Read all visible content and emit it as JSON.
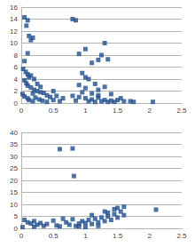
{
  "chart_data": [
    {
      "type": "scatter",
      "color": "#1f4e8c",
      "marker": "square",
      "grid": true,
      "xlim": [
        0,
        2.5
      ],
      "xticks": [
        0,
        0.5,
        1,
        1.5,
        2,
        2.5
      ],
      "ylim": [
        0,
        16
      ],
      "yticks": [
        0,
        2,
        4,
        6,
        8,
        10,
        12,
        14,
        16
      ],
      "x": [
        0.05,
        0.1,
        0.08,
        0.12,
        0.15,
        0.18,
        0.1,
        0.05,
        0.03,
        0.07,
        0.1,
        0.12,
        0.15,
        0.2,
        0.05,
        0.08,
        0.1,
        0.15,
        0.2,
        0.25,
        0.3,
        0.35,
        0.4,
        0.02,
        0.05,
        0.1,
        0.12,
        0.18,
        0.22,
        0.28,
        0.33,
        0.4,
        0.5,
        0.45,
        0.55,
        0.6,
        0.25,
        0.3,
        0.18,
        0.5,
        0.65,
        0.8,
        0.85,
        0.9,
        1.0,
        1.2,
        1.25,
        1.3,
        1.35,
        1.1,
        0.95,
        1.0,
        1.05,
        0.9,
        1.15,
        1.3,
        1.0,
        1.2,
        0.95,
        1.1,
        1.4,
        0.8,
        0.9,
        1.0,
        1.1,
        1.2,
        1.3,
        1.4,
        1.5,
        1.6,
        1.7,
        1.75,
        1.05,
        1.15,
        1.25,
        1.35,
        1.45,
        0.85,
        2.05,
        1.55,
        1.2
      ],
      "values": [
        14.3,
        13.8,
        12.9,
        11.2,
        10.5,
        10.9,
        8.3,
        7.0,
        5.7,
        5.2,
        4.8,
        4.3,
        4.6,
        4.0,
        3.8,
        3.3,
        2.9,
        2.6,
        2.2,
        2.0,
        1.8,
        1.7,
        1.3,
        1.5,
        1.1,
        0.8,
        0.5,
        0.3,
        0.9,
        0.6,
        0.4,
        0.2,
        0.5,
        1.0,
        1.2,
        0.3,
        3.2,
        2.7,
        1.6,
        2.0,
        0.8,
        14.0,
        13.8,
        8.2,
        9.0,
        7.2,
        8.0,
        10.0,
        7.3,
        6.7,
        5.0,
        4.3,
        4.0,
        3.0,
        3.2,
        2.7,
        2.5,
        2.2,
        1.8,
        1.6,
        1.5,
        1.2,
        1.0,
        0.8,
        0.6,
        0.9,
        0.5,
        0.4,
        0.5,
        0.3,
        0.3,
        0.2,
        0.3,
        0.2,
        0.3,
        0.2,
        0.2,
        0.4,
        0.2,
        0.8,
        1.3
      ]
    },
    {
      "type": "scatter",
      "color": "#1f4e8c",
      "marker": "square",
      "grid": true,
      "xlim": [
        0,
        2.5
      ],
      "xticks": [
        0,
        0.5,
        1,
        1.5,
        2,
        2.5
      ],
      "ylim": [
        0,
        40
      ],
      "yticks": [
        0,
        5,
        10,
        15,
        20,
        25,
        30,
        35,
        40
      ],
      "x": [
        0.6,
        0.8,
        0.82,
        0.05,
        0.1,
        0.15,
        0.2,
        0.25,
        0.3,
        0.35,
        0.4,
        0.5,
        0.55,
        0.6,
        0.7,
        0.75,
        0.8,
        0.85,
        0.9,
        0.95,
        1.0,
        1.05,
        1.1,
        1.15,
        1.2,
        1.25,
        1.3,
        1.35,
        1.4,
        1.45,
        1.5,
        1.5,
        1.55,
        1.6,
        1.6,
        1.45,
        1.35,
        2.1,
        1.0,
        0.9,
        1.2,
        0.65,
        1.1,
        1.3,
        0.02,
        0.2
      ],
      "values": [
        33.0,
        33.3,
        21.8,
        3.5,
        2.5,
        2.0,
        3.0,
        1.5,
        2.2,
        1.0,
        1.8,
        3.2,
        1.2,
        0.8,
        2.5,
        1.5,
        3.8,
        1.0,
        2.0,
        3.0,
        2.2,
        3.5,
        1.8,
        4.0,
        2.5,
        4.5,
        3.0,
        5.0,
        3.5,
        6.0,
        4.5,
        8.5,
        7.0,
        5.5,
        9.0,
        8.0,
        6.5,
        7.8,
        0.5,
        0.8,
        1.0,
        4.0,
        5.5,
        7.0,
        0.5,
        0.7
      ]
    }
  ]
}
